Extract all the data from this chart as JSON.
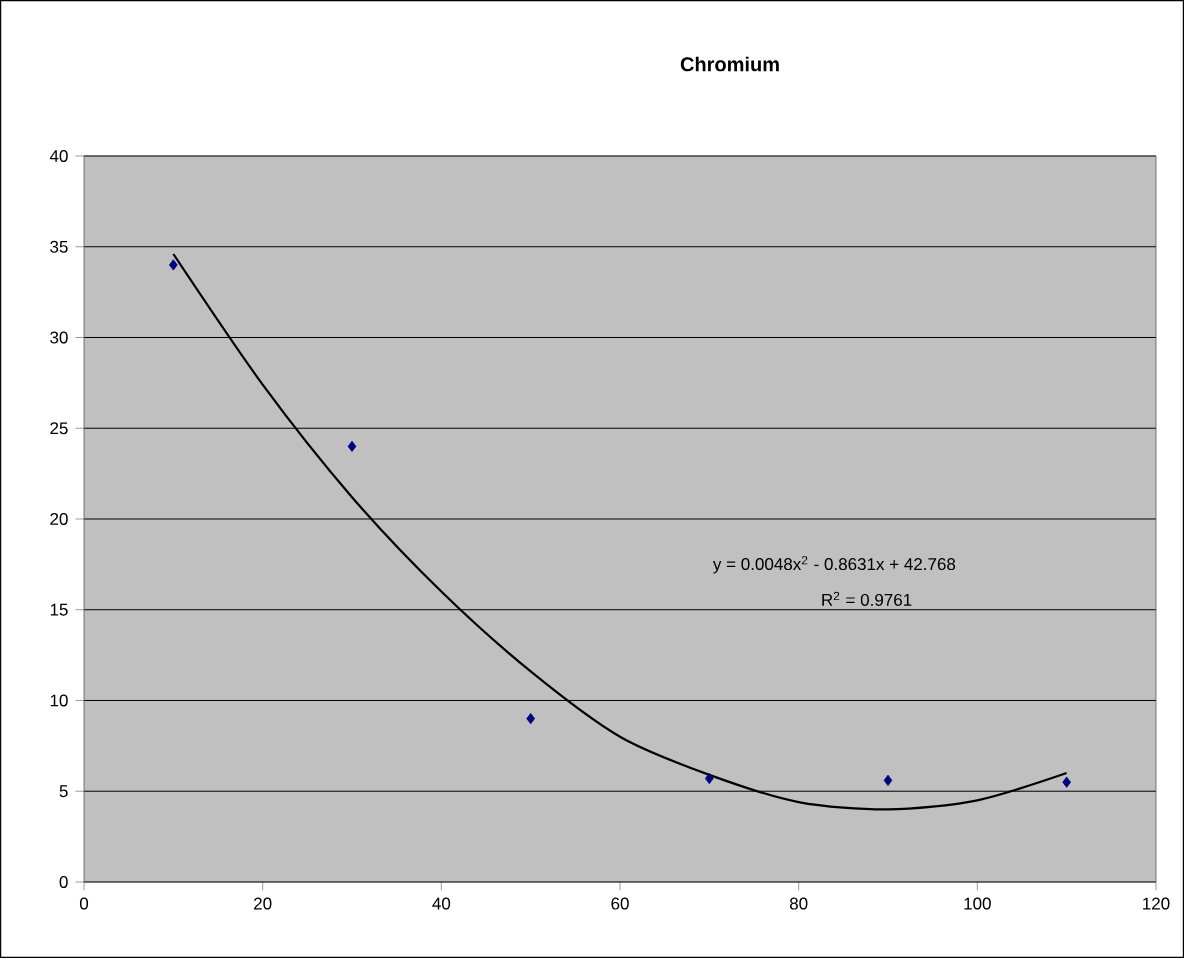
{
  "chart_data": {
    "type": "scatter",
    "title": "Chromium",
    "xlim": [
      0,
      120
    ],
    "ylim": [
      0,
      40
    ],
    "xticks": [
      0,
      20,
      40,
      60,
      80,
      100,
      120
    ],
    "yticks": [
      0,
      5,
      10,
      15,
      20,
      25,
      30,
      35,
      40
    ],
    "grid": "y",
    "series": [
      {
        "color": "#000080",
        "marker": "diamond",
        "x": [
          10,
          30,
          50,
          70,
          90,
          110
        ],
        "values": [
          34,
          24,
          9,
          5.7,
          5.6,
          5.5
        ]
      },
      {
        "type": "line",
        "color": "#000000",
        "marker": "none",
        "x": [
          10,
          20,
          30,
          40,
          50,
          60,
          70,
          80,
          90,
          100,
          110
        ],
        "values": [
          34.6,
          27.4,
          21.2,
          16.0,
          11.6,
          8.0,
          5.9,
          4.4,
          4.0,
          4.5,
          6.0
        ]
      }
    ],
    "annotations": [
      "y = 0.0048x$^{2}$ - 0.8631x + 42.768",
      "R$^{2}$ = 0.9761"
    ]
  }
}
